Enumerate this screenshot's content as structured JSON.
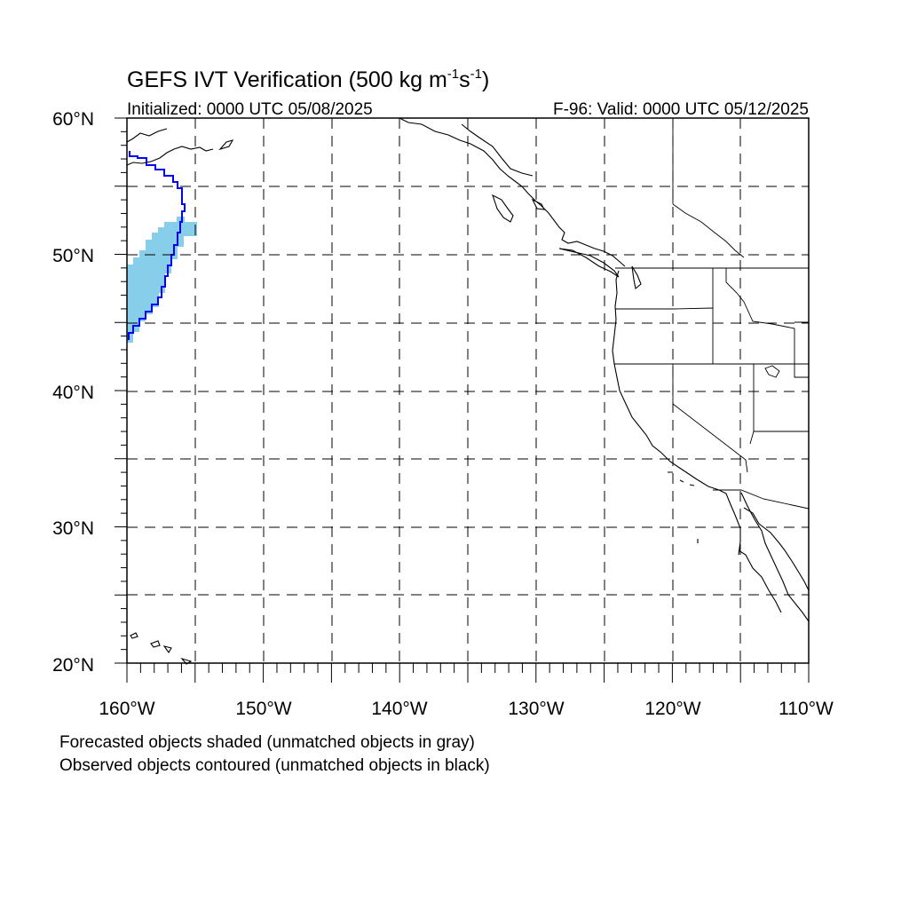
{
  "title": {
    "main": "GEFS IVT Verification (500 kg m",
    "sup1": "-1",
    "mid": "s",
    "sup2": "-1",
    "end": ")"
  },
  "subtitle_left": "Initialized: 0000 UTC 05/08/2025",
  "subtitle_right": "F-96: Valid: 0000 UTC 05/12/2025",
  "lat_labels": [
    "60°N",
    "50°N",
    "40°N",
    "30°N",
    "20°N"
  ],
  "lon_labels": [
    "160°W",
    "150°W",
    "140°W",
    "130°W",
    "120°W",
    "110°W"
  ],
  "legend_notes": [
    "Forecasted objects shaded (unmatched objects in gray)",
    "Observed objects contoured (unmatched objects in black)"
  ],
  "map": {
    "lon_range": [
      -160,
      -110
    ],
    "lat_range": [
      20,
      60
    ],
    "gridline_style": "dashed",
    "forecast_object_color": "#87ceeb",
    "observed_contour_color": "#0000ff",
    "coastline_color": "#000000"
  }
}
